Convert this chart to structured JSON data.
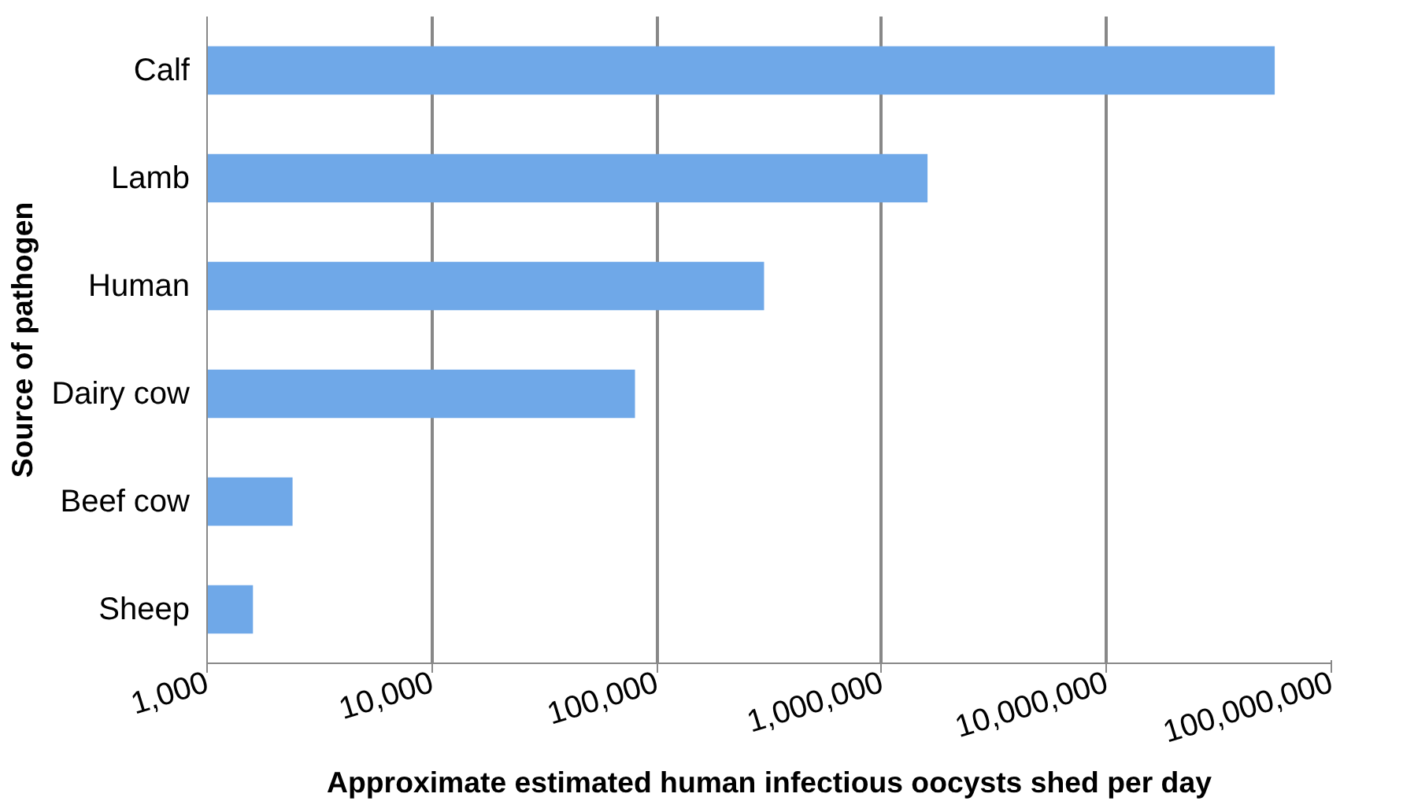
{
  "chart_data": {
    "type": "bar",
    "orientation": "horizontal",
    "log": "x",
    "xlabel": "Approximate estimated human infectious oocysts shed per day",
    "ylabel": "Source of pathogen",
    "categories": [
      "Calf",
      "Lamb",
      "Human",
      "Dairy cow",
      "Beef cow",
      "Sheep"
    ],
    "values": [
      56000000,
      1600000,
      300000,
      80000,
      2400,
      1600
    ],
    "color": "#6fa8e8",
    "xlim": [
      1000,
      100000000
    ],
    "xticks": [
      {
        "value": 1000,
        "label": "1,000"
      },
      {
        "value": 10000,
        "label": "10,000"
      },
      {
        "value": 100000,
        "label": "100,000"
      },
      {
        "value": 1000000,
        "label": "1,000,000"
      },
      {
        "value": 10000000,
        "label": "10,000,000"
      },
      {
        "value": 100000000,
        "label": "100,000,000"
      }
    ],
    "grid": "x"
  }
}
